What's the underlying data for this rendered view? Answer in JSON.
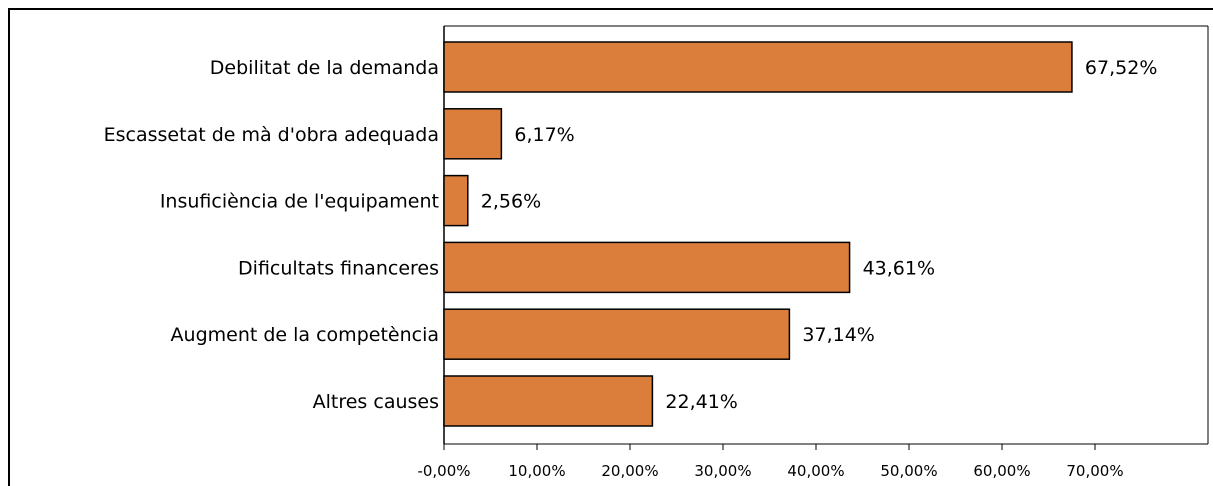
{
  "chart_data": {
    "type": "bar",
    "orientation": "horizontal",
    "categories": [
      "Debilitat de la demanda",
      "Escassetat de mà d'obra adequada",
      "Insuficiència de l'equipament",
      "Dificultats financeres",
      "Augment de la competència",
      "Altres causes"
    ],
    "values": [
      67.52,
      6.17,
      2.56,
      43.61,
      37.14,
      22.41
    ],
    "value_labels": [
      "67,52%",
      "6,17%",
      "2,56%",
      "43,61%",
      "37,14%",
      "22,41%"
    ],
    "xticks": [
      0,
      10,
      20,
      30,
      40,
      50,
      60,
      70
    ],
    "xtick_labels": [
      "-0,00%",
      "10,00%",
      "20,00%",
      "30,00%",
      "40,00%",
      "50,00%",
      "60,00%",
      "70,00%"
    ],
    "xlim": [
      0,
      82.5
    ],
    "grid": false,
    "title": "",
    "xlabel": "",
    "ylabel": "",
    "bar_color": "#db7e3c",
    "bar_edge_color": "#000000"
  }
}
